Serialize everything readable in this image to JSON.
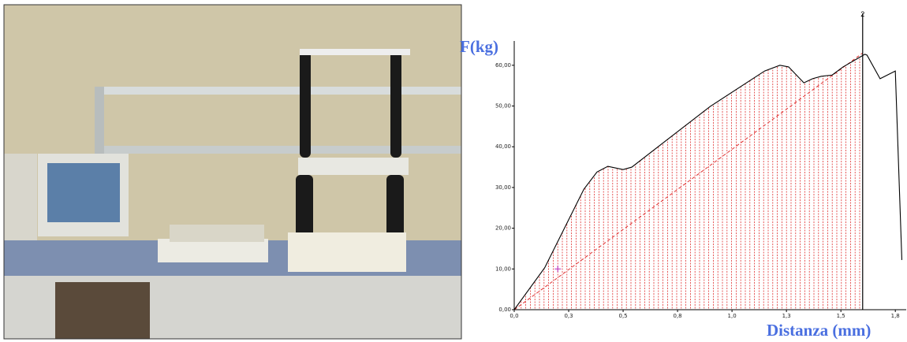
{
  "chart_data": {
    "type": "line",
    "y_label": "F(kg)",
    "x_label": "Distanza (mm)",
    "x": [
      0,
      0.14,
      0.32,
      0.38,
      0.43,
      0.5,
      0.54,
      0.68,
      0.9,
      1.15,
      1.22,
      1.26,
      1.33,
      1.37,
      1.41,
      1.46,
      1.51,
      1.61,
      1.62,
      1.68,
      1.75,
      1.78
    ],
    "values": [
      0,
      10.3,
      29.6,
      33.8,
      35.2,
      34.4,
      35,
      40.8,
      49.9,
      58.6,
      60,
      59.6,
      55.7,
      56.7,
      57.3,
      57.6,
      59.6,
      62.7,
      62.5,
      56.7,
      58.6,
      12.2
    ],
    "color": "#000000",
    "reference_line": {
      "x": [
        0,
        1.6
      ],
      "values": [
        0,
        63
      ],
      "color": "#e03030"
    },
    "marker": {
      "x": 0.2,
      "value": 10,
      "color": "#c040c0"
    },
    "cursor": {
      "x": 1.6,
      "label": "2"
    },
    "hatch_color": "#e03030",
    "xlim": [
      0,
      1.8
    ],
    "ylim": [
      0,
      65
    ],
    "xticks": [
      {
        "value": 0,
        "label": "0,0"
      },
      {
        "value": 0.25,
        "label": "0,3"
      },
      {
        "value": 0.5,
        "label": "0,5"
      },
      {
        "value": 0.75,
        "label": "0,8"
      },
      {
        "value": 1.0,
        "label": "1,0"
      },
      {
        "value": 1.25,
        "label": "1,3"
      },
      {
        "value": 1.5,
        "label": "1,5"
      },
      {
        "value": 1.75,
        "label": "1,8"
      }
    ],
    "yticks": [
      {
        "value": 0,
        "label": "0,00"
      },
      {
        "value": 10,
        "label": "10,00"
      },
      {
        "value": 20,
        "label": "20,00"
      },
      {
        "value": 30,
        "label": "30,00"
      },
      {
        "value": 40,
        "label": "40,00"
      },
      {
        "value": 50,
        "label": "50,00"
      },
      {
        "value": 60,
        "label": "60,00"
      }
    ]
  }
}
